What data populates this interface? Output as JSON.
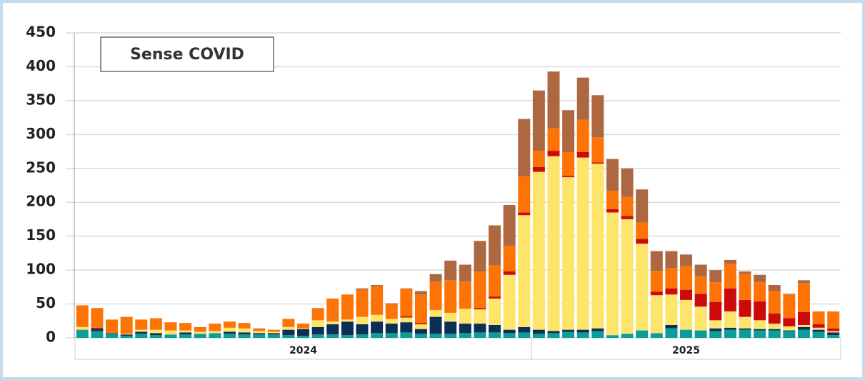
{
  "chart_data": {
    "type": "stacked-bar",
    "title": "Sense COVID",
    "categories": [
      null,
      null,
      null,
      null,
      null,
      null,
      null,
      null,
      null,
      null,
      null,
      null,
      null,
      null,
      null,
      null,
      null,
      null,
      null,
      null,
      null,
      null,
      null,
      null,
      null,
      null,
      null,
      null,
      null,
      null,
      null,
      null,
      null,
      null,
      null,
      null,
      null,
      null,
      null,
      null,
      null,
      null,
      null,
      null,
      null,
      null,
      null,
      null,
      null,
      null,
      null,
      null
    ],
    "x_groups": [
      {
        "label": "2024",
        "size": 31
      },
      {
        "label": "2025",
        "size": 21
      }
    ],
    "series": [
      {
        "color": "#0e9c98",
        "values": [
          12,
          10,
          6,
          3,
          6,
          4,
          5,
          5,
          6,
          7,
          6,
          5,
          5,
          5,
          4,
          3,
          5,
          5,
          4,
          5,
          7,
          7,
          8,
          6,
          6,
          6,
          7,
          8,
          8,
          7,
          8,
          6,
          7,
          9,
          8,
          10,
          4,
          6,
          11,
          7,
          14,
          12,
          11,
          10,
          12,
          12,
          11,
          11,
          10,
          12,
          9,
          4
        ]
      },
      {
        "color": "#0b2f55",
        "values": [
          0,
          3,
          1,
          2,
          3,
          3,
          0,
          3,
          0,
          0,
          3,
          3,
          2,
          2,
          8,
          10,
          11,
          15,
          20,
          15,
          17,
          14,
          15,
          7,
          25,
          18,
          14,
          13,
          11,
          5,
          8,
          6,
          3,
          3,
          4,
          4,
          0,
          0,
          0,
          0,
          5,
          0,
          0,
          4,
          3,
          2,
          2,
          2,
          1,
          4,
          3,
          4
        ]
      },
      {
        "color": "#fde46a",
        "values": [
          4,
          0,
          0,
          1,
          3,
          5,
          6,
          3,
          3,
          3,
          6,
          6,
          3,
          2,
          4,
          1,
          10,
          4,
          3,
          11,
          10,
          7,
          7,
          7,
          10,
          13,
          22,
          21,
          39,
          81,
          165,
          233,
          258,
          225,
          254,
          243,
          181,
          169,
          128,
          56,
          45,
          44,
          35,
          12,
          24,
          17,
          13,
          8,
          6,
          3,
          3,
          2
        ]
      },
      {
        "color": "#cc0a0a",
        "values": [
          0,
          2,
          0,
          0,
          0,
          0,
          0,
          0,
          0,
          0,
          0,
          0,
          0,
          0,
          0,
          0,
          0,
          0,
          0,
          0,
          0,
          0,
          2,
          2,
          0,
          0,
          0,
          2,
          3,
          5,
          4,
          7,
          8,
          2,
          8,
          2,
          5,
          5,
          7,
          5,
          9,
          15,
          19,
          27,
          34,
          25,
          28,
          15,
          12,
          19,
          5,
          4
        ]
      },
      {
        "color": "#fe7305",
        "values": [
          32,
          29,
          20,
          25,
          15,
          17,
          12,
          11,
          7,
          11,
          9,
          8,
          4,
          3,
          12,
          7,
          18,
          34,
          37,
          40,
          42,
          22,
          40,
          42,
          42,
          48,
          40,
          54,
          46,
          38,
          53,
          24,
          33,
          35,
          48,
          37,
          27,
          28,
          24,
          31,
          30,
          35,
          26,
          29,
          36,
          38,
          28,
          33,
          35,
          43,
          19,
          25
        ]
      },
      {
        "color": "#ad6841",
        "values": [
          0,
          0,
          0,
          0,
          0,
          0,
          0,
          0,
          0,
          0,
          0,
          0,
          0,
          0,
          0,
          0,
          0,
          0,
          0,
          2,
          2,
          1,
          1,
          5,
          11,
          29,
          25,
          45,
          59,
          60,
          85,
          89,
          84,
          62,
          62,
          62,
          47,
          42,
          49,
          29,
          25,
          17,
          17,
          18,
          6,
          4,
          11,
          9,
          1,
          4,
          0,
          0
        ]
      }
    ],
    "ylim": [
      0,
      450
    ],
    "yticks": [
      0,
      50,
      100,
      150,
      200,
      250,
      300,
      350,
      400,
      450
    ],
    "grid": true
  }
}
